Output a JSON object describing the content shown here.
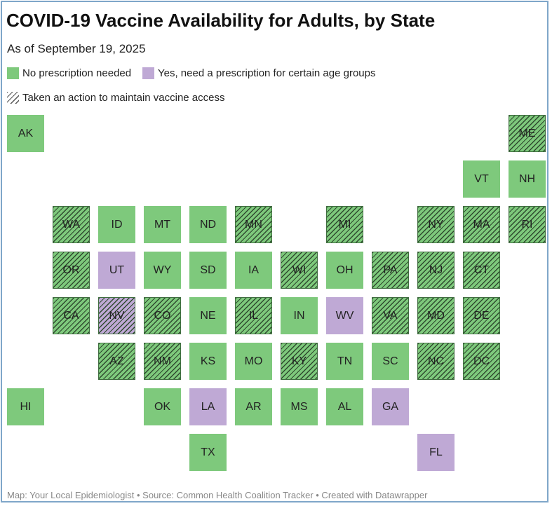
{
  "title": "COVID-19 Vaccine Availability for Adults, by State",
  "subtitle": "As of September 19, 2025",
  "colors": {
    "green": "#7ec97c",
    "purple": "#bfa9d5",
    "hatch": "#2f4a2f"
  },
  "legend": [
    {
      "label": "No prescription needed",
      "swatch": "green"
    },
    {
      "label": "Yes, need a prescription for certain age groups",
      "swatch": "purple"
    },
    {
      "label": "Taken an action to maintain vaccine access",
      "swatch": "hatch"
    }
  ],
  "states": [
    {
      "abbr": "AK",
      "row": 0,
      "col": 0,
      "status": "green",
      "action": false
    },
    {
      "abbr": "ME",
      "row": 0,
      "col": 11,
      "status": "green",
      "action": true
    },
    {
      "abbr": "VT",
      "row": 1,
      "col": 10,
      "status": "green",
      "action": false
    },
    {
      "abbr": "NH",
      "row": 1,
      "col": 11,
      "status": "green",
      "action": false
    },
    {
      "abbr": "WA",
      "row": 2,
      "col": 1,
      "status": "green",
      "action": true
    },
    {
      "abbr": "ID",
      "row": 2,
      "col": 2,
      "status": "green",
      "action": false
    },
    {
      "abbr": "MT",
      "row": 2,
      "col": 3,
      "status": "green",
      "action": false
    },
    {
      "abbr": "ND",
      "row": 2,
      "col": 4,
      "status": "green",
      "action": false
    },
    {
      "abbr": "MN",
      "row": 2,
      "col": 5,
      "status": "green",
      "action": true
    },
    {
      "abbr": "MI",
      "row": 2,
      "col": 7,
      "status": "green",
      "action": true
    },
    {
      "abbr": "NY",
      "row": 2,
      "col": 9,
      "status": "green",
      "action": true
    },
    {
      "abbr": "MA",
      "row": 2,
      "col": 10,
      "status": "green",
      "action": true
    },
    {
      "abbr": "RI",
      "row": 2,
      "col": 11,
      "status": "green",
      "action": true
    },
    {
      "abbr": "OR",
      "row": 3,
      "col": 1,
      "status": "green",
      "action": true
    },
    {
      "abbr": "UT",
      "row": 3,
      "col": 2,
      "status": "purple",
      "action": false
    },
    {
      "abbr": "WY",
      "row": 3,
      "col": 3,
      "status": "green",
      "action": false
    },
    {
      "abbr": "SD",
      "row": 3,
      "col": 4,
      "status": "green",
      "action": false
    },
    {
      "abbr": "IA",
      "row": 3,
      "col": 5,
      "status": "green",
      "action": false
    },
    {
      "abbr": "WI",
      "row": 3,
      "col": 6,
      "status": "green",
      "action": true
    },
    {
      "abbr": "OH",
      "row": 3,
      "col": 7,
      "status": "green",
      "action": false
    },
    {
      "abbr": "PA",
      "row": 3,
      "col": 8,
      "status": "green",
      "action": true
    },
    {
      "abbr": "NJ",
      "row": 3,
      "col": 9,
      "status": "green",
      "action": true
    },
    {
      "abbr": "CT",
      "row": 3,
      "col": 10,
      "status": "green",
      "action": true
    },
    {
      "abbr": "CA",
      "row": 4,
      "col": 1,
      "status": "green",
      "action": true
    },
    {
      "abbr": "NV",
      "row": 4,
      "col": 2,
      "status": "purple",
      "action": true
    },
    {
      "abbr": "CO",
      "row": 4,
      "col": 3,
      "status": "green",
      "action": true
    },
    {
      "abbr": "NE",
      "row": 4,
      "col": 4,
      "status": "green",
      "action": false
    },
    {
      "abbr": "IL",
      "row": 4,
      "col": 5,
      "status": "green",
      "action": true
    },
    {
      "abbr": "IN",
      "row": 4,
      "col": 6,
      "status": "green",
      "action": false
    },
    {
      "abbr": "WV",
      "row": 4,
      "col": 7,
      "status": "purple",
      "action": false
    },
    {
      "abbr": "VA",
      "row": 4,
      "col": 8,
      "status": "green",
      "action": true
    },
    {
      "abbr": "MD",
      "row": 4,
      "col": 9,
      "status": "green",
      "action": true
    },
    {
      "abbr": "DE",
      "row": 4,
      "col": 10,
      "status": "green",
      "action": true
    },
    {
      "abbr": "AZ",
      "row": 5,
      "col": 2,
      "status": "green",
      "action": true
    },
    {
      "abbr": "NM",
      "row": 5,
      "col": 3,
      "status": "green",
      "action": true
    },
    {
      "abbr": "KS",
      "row": 5,
      "col": 4,
      "status": "green",
      "action": false
    },
    {
      "abbr": "MO",
      "row": 5,
      "col": 5,
      "status": "green",
      "action": false
    },
    {
      "abbr": "KY",
      "row": 5,
      "col": 6,
      "status": "green",
      "action": true
    },
    {
      "abbr": "TN",
      "row": 5,
      "col": 7,
      "status": "green",
      "action": false
    },
    {
      "abbr": "SC",
      "row": 5,
      "col": 8,
      "status": "green",
      "action": false
    },
    {
      "abbr": "NC",
      "row": 5,
      "col": 9,
      "status": "green",
      "action": true
    },
    {
      "abbr": "DC",
      "row": 5,
      "col": 10,
      "status": "green",
      "action": true
    },
    {
      "abbr": "HI",
      "row": 6,
      "col": 0,
      "status": "green",
      "action": false
    },
    {
      "abbr": "OK",
      "row": 6,
      "col": 3,
      "status": "green",
      "action": false
    },
    {
      "abbr": "LA",
      "row": 6,
      "col": 4,
      "status": "purple",
      "action": false
    },
    {
      "abbr": "AR",
      "row": 6,
      "col": 5,
      "status": "green",
      "action": false
    },
    {
      "abbr": "MS",
      "row": 6,
      "col": 6,
      "status": "green",
      "action": false
    },
    {
      "abbr": "AL",
      "row": 6,
      "col": 7,
      "status": "green",
      "action": false
    },
    {
      "abbr": "GA",
      "row": 6,
      "col": 8,
      "status": "purple",
      "action": false
    },
    {
      "abbr": "TX",
      "row": 7,
      "col": 4,
      "status": "green",
      "action": false
    },
    {
      "abbr": "FL",
      "row": 7,
      "col": 9,
      "status": "purple",
      "action": false
    }
  ],
  "footer": "Map: Your Local Epidemiologist • Source: Common Health Coalition Tracker • Created with Datawrapper"
}
